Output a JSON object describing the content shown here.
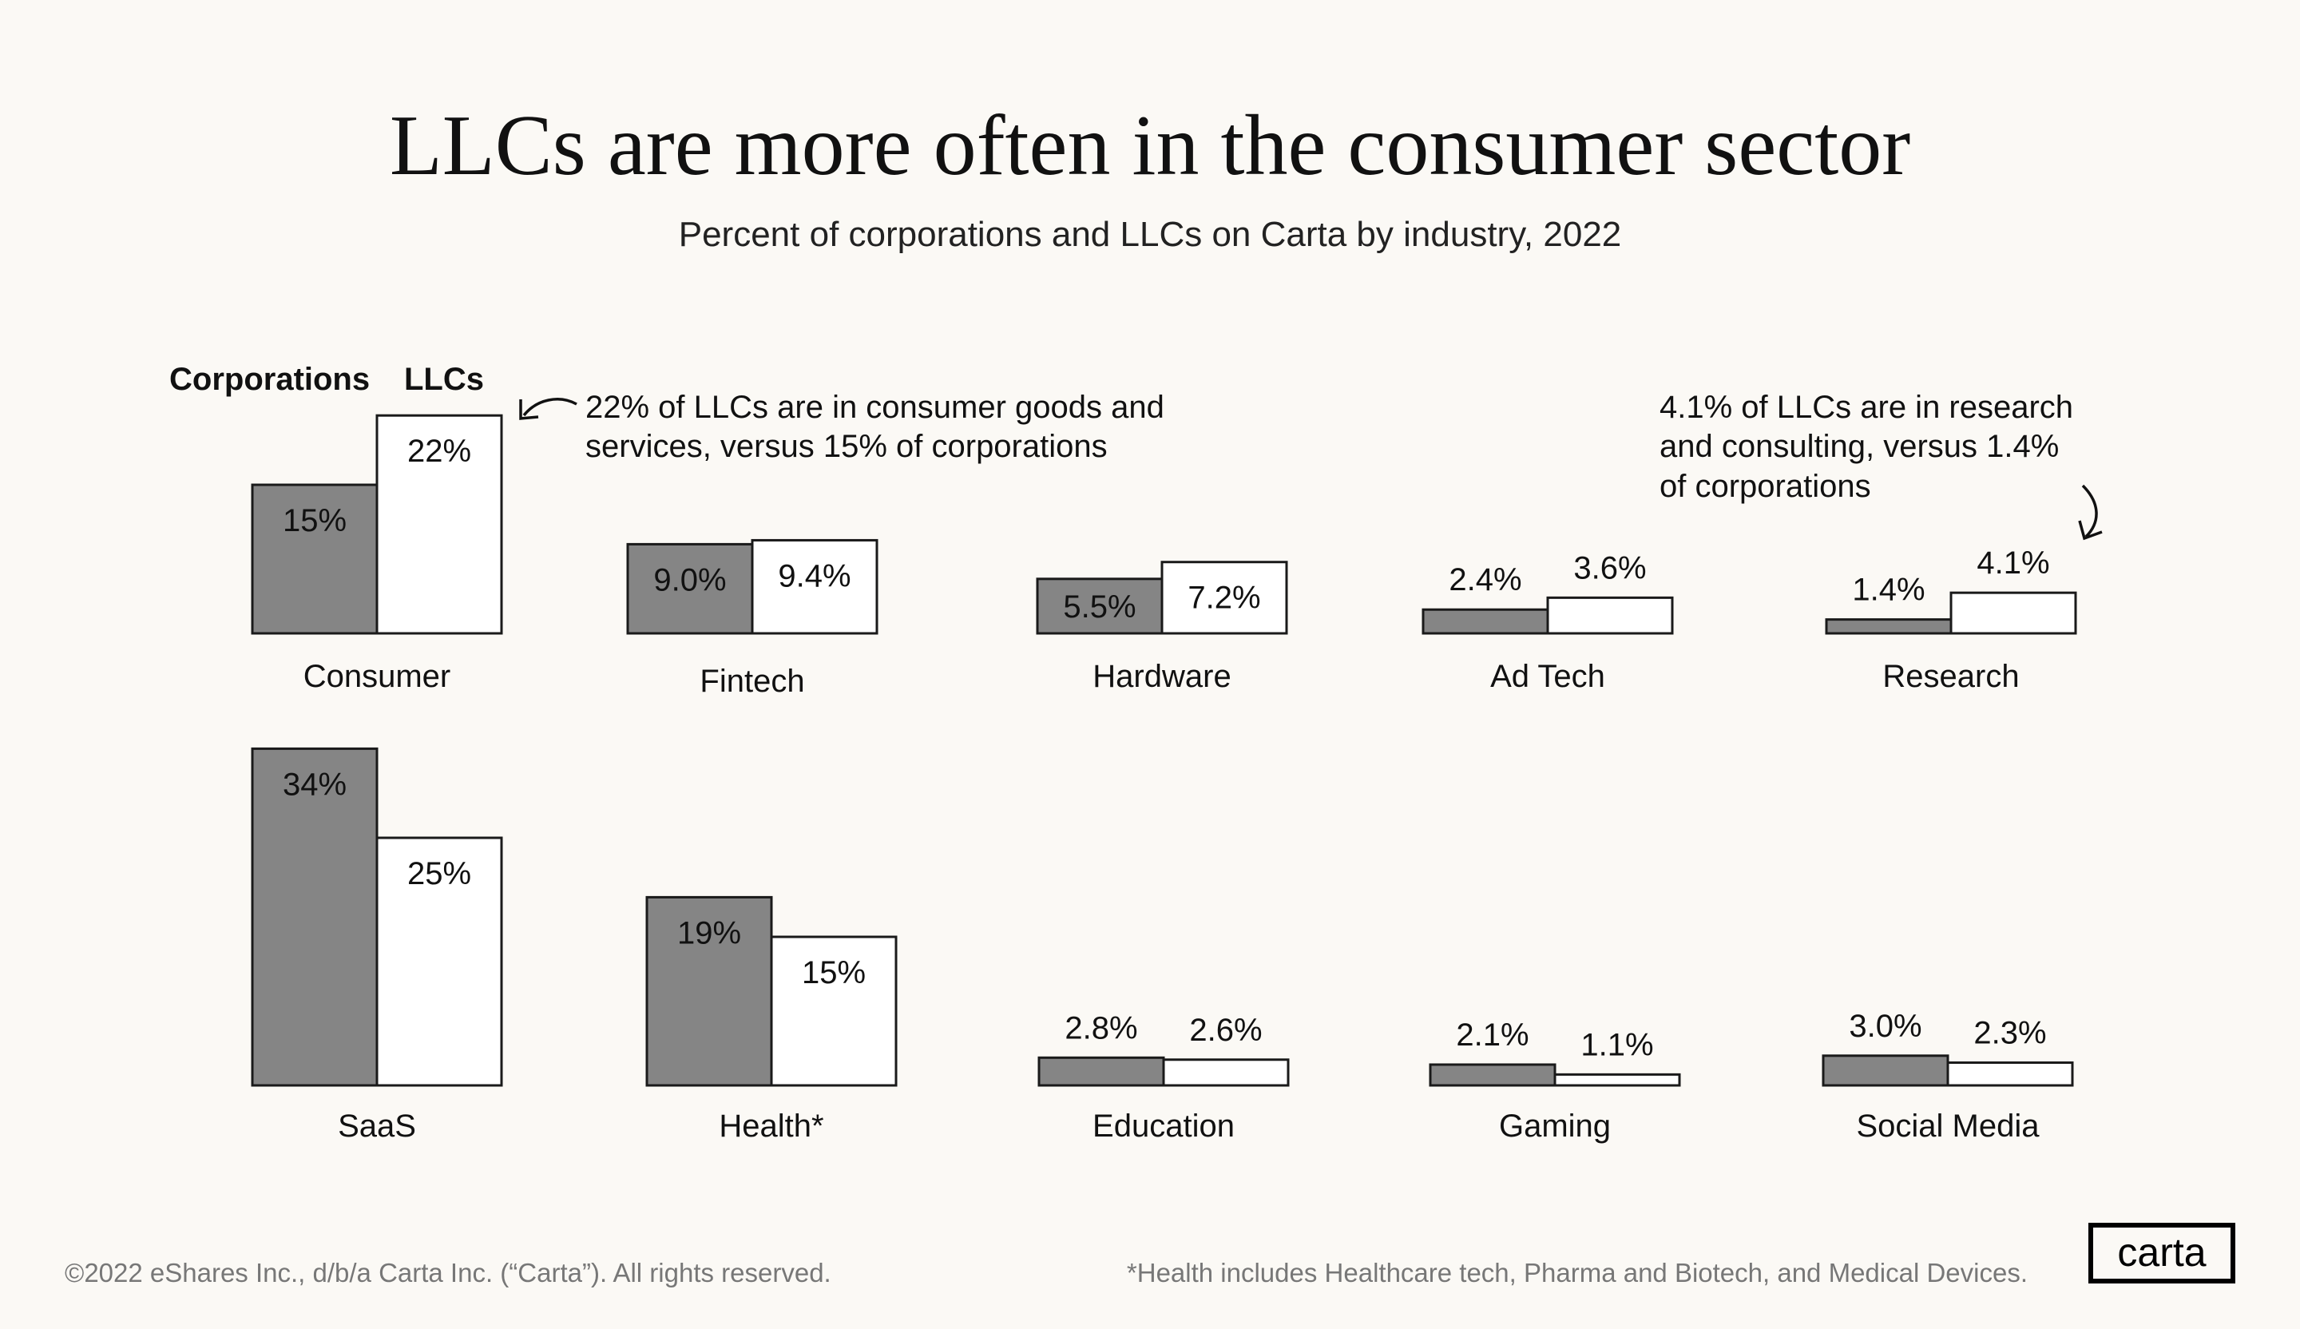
{
  "title": "LLCs are more often in the consumer sector",
  "subtitle": "Percent of corporations and LLCs on Carta by industry, 2022",
  "legend": {
    "corporations": "Corporations",
    "llcs": "LLCs"
  },
  "annotations": {
    "consumer": [
      "22% of LLCs are in consumer goods and",
      "services, versus 15% of corporations"
    ],
    "research": [
      "4.1% of LLCs are in research",
      "and consulting, versus 1.4%",
      "of corporations"
    ]
  },
  "footer": {
    "copyright": "©2022 eShares Inc., d/b/a Carta Inc. (“Carta”). All rights reserved.",
    "note": "*Health includes Healthcare tech, Pharma and Biotech, and Medical Devices.",
    "logo": "carta"
  },
  "colors": {
    "corporations": "#858585",
    "llcs": "#ffffff",
    "background": "#fbf9f5",
    "outline": "#1a1a1a"
  },
  "chart_data": {
    "type": "bar",
    "layout": "small multiples, 2 rows of 5",
    "series_names": [
      "Corporations",
      "LLCs"
    ],
    "unit": "%",
    "categories": [
      {
        "name": "Consumer",
        "corporations": 15,
        "llcs": 22,
        "labels": [
          "15%",
          "22%"
        ]
      },
      {
        "name": "Fintech",
        "corporations": 9.0,
        "llcs": 9.4,
        "labels": [
          "9.0%",
          "9.4%"
        ]
      },
      {
        "name": "Hardware",
        "corporations": 5.5,
        "llcs": 7.2,
        "labels": [
          "5.5%",
          "7.2%"
        ]
      },
      {
        "name": "Ad Tech",
        "corporations": 2.4,
        "llcs": 3.6,
        "labels": [
          "2.4%",
          "3.6%"
        ]
      },
      {
        "name": "Research",
        "corporations": 1.4,
        "llcs": 4.1,
        "labels": [
          "1.4%",
          "4.1%"
        ]
      },
      {
        "name": "SaaS",
        "corporations": 34,
        "llcs": 25,
        "labels": [
          "34%",
          "25%"
        ]
      },
      {
        "name": "Health*",
        "corporations": 19,
        "llcs": 15,
        "labels": [
          "19%",
          "15%"
        ]
      },
      {
        "name": "Education",
        "corporations": 2.8,
        "llcs": 2.6,
        "labels": [
          "2.8%",
          "2.6%"
        ]
      },
      {
        "name": "Gaming",
        "corporations": 2.1,
        "llcs": 1.1,
        "labels": [
          "2.1%",
          "1.1%"
        ]
      },
      {
        "name": "Social Media",
        "corporations": 3.0,
        "llcs": 2.3,
        "labels": [
          "3.0%",
          "2.3%"
        ]
      }
    ]
  }
}
